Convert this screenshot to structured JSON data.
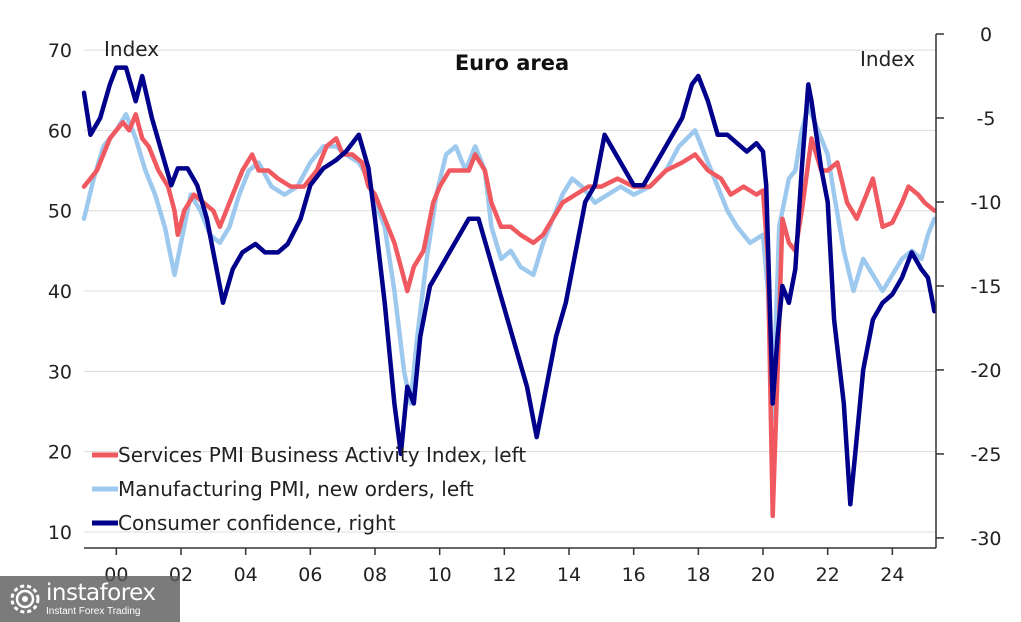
{
  "chart_data": {
    "type": "line",
    "title": "Euro area",
    "ylabel_left": "Index",
    "ylabel_right": "Index",
    "ylim_left": [
      8,
      72
    ],
    "ylim_right": [
      -30.6,
      0
    ],
    "xlim": [
      1999.0,
      2025.35
    ],
    "left_ticks": [
      10,
      20,
      30,
      40,
      50,
      60,
      70
    ],
    "right_ticks": [
      0,
      -5,
      -10,
      -15,
      -20,
      -25,
      -30
    ],
    "right_tick_labels": [
      "0",
      "-5",
      "-10",
      "-15",
      "-20",
      "-25",
      "-30"
    ],
    "x_ticks": [
      2000,
      2002,
      2004,
      2006,
      2008,
      2010,
      2012,
      2014,
      2016,
      2018,
      2020,
      2022,
      2024
    ],
    "x_tick_labels": [
      "00",
      "02",
      "04",
      "06",
      "08",
      "10",
      "12",
      "14",
      "16",
      "18",
      "20",
      "22",
      "24"
    ],
    "grid": true,
    "legend_position": "bottom-left",
    "series": [
      {
        "name": "Services PMI Business Activity Index, left",
        "axis": "left",
        "color": "#f0595f",
        "points": [
          [
            1999.0,
            53
          ],
          [
            1999.4,
            55
          ],
          [
            1999.8,
            59
          ],
          [
            2000.2,
            61
          ],
          [
            2000.4,
            60
          ],
          [
            2000.6,
            62
          ],
          [
            2000.8,
            59
          ],
          [
            2001.0,
            58
          ],
          [
            2001.3,
            55
          ],
          [
            2001.6,
            53
          ],
          [
            2001.8,
            50
          ],
          [
            2001.9,
            47
          ],
          [
            2002.1,
            50
          ],
          [
            2002.4,
            52
          ],
          [
            2002.7,
            51
          ],
          [
            2003.0,
            50
          ],
          [
            2003.2,
            48
          ],
          [
            2003.4,
            50
          ],
          [
            2003.6,
            52
          ],
          [
            2003.9,
            55
          ],
          [
            2004.2,
            57
          ],
          [
            2004.4,
            55
          ],
          [
            2004.7,
            55
          ],
          [
            2005.0,
            54
          ],
          [
            2005.4,
            53
          ],
          [
            2005.8,
            53
          ],
          [
            2006.2,
            55
          ],
          [
            2006.5,
            58
          ],
          [
            2006.8,
            59
          ],
          [
            2007.0,
            57
          ],
          [
            2007.3,
            57
          ],
          [
            2007.6,
            56
          ],
          [
            2007.8,
            53
          ],
          [
            2008.0,
            52
          ],
          [
            2008.3,
            49
          ],
          [
            2008.6,
            46
          ],
          [
            2008.8,
            43
          ],
          [
            2009.0,
            40
          ],
          [
            2009.2,
            43
          ],
          [
            2009.5,
            45
          ],
          [
            2009.8,
            51
          ],
          [
            2010.0,
            53
          ],
          [
            2010.3,
            55
          ],
          [
            2010.6,
            55
          ],
          [
            2010.9,
            55
          ],
          [
            2011.1,
            57
          ],
          [
            2011.4,
            55
          ],
          [
            2011.6,
            51
          ],
          [
            2011.9,
            48
          ],
          [
            2012.2,
            48
          ],
          [
            2012.5,
            47
          ],
          [
            2012.9,
            46
          ],
          [
            2013.2,
            47
          ],
          [
            2013.5,
            49
          ],
          [
            2013.8,
            51
          ],
          [
            2014.2,
            52
          ],
          [
            2014.6,
            53
          ],
          [
            2015.0,
            53
          ],
          [
            2015.5,
            54
          ],
          [
            2016.0,
            53
          ],
          [
            2016.5,
            53
          ],
          [
            2017.0,
            55
          ],
          [
            2017.5,
            56
          ],
          [
            2017.9,
            57
          ],
          [
            2018.3,
            55
          ],
          [
            2018.7,
            54
          ],
          [
            2019.0,
            52
          ],
          [
            2019.4,
            53
          ],
          [
            2019.8,
            52
          ],
          [
            2020.0,
            52.5
          ],
          [
            2020.15,
            44
          ],
          [
            2020.3,
            12
          ],
          [
            2020.45,
            30
          ],
          [
            2020.6,
            49
          ],
          [
            2020.8,
            46
          ],
          [
            2021.0,
            45
          ],
          [
            2021.2,
            50
          ],
          [
            2021.4,
            56
          ],
          [
            2021.5,
            59
          ],
          [
            2021.8,
            55
          ],
          [
            2022.0,
            55
          ],
          [
            2022.3,
            56
          ],
          [
            2022.6,
            51
          ],
          [
            2022.9,
            49
          ],
          [
            2023.1,
            51
          ],
          [
            2023.4,
            54
          ],
          [
            2023.7,
            48
          ],
          [
            2024.0,
            48.5
          ],
          [
            2024.3,
            51
          ],
          [
            2024.5,
            53
          ],
          [
            2024.8,
            52
          ],
          [
            2025.0,
            51
          ],
          [
            2025.3,
            50
          ]
        ]
      },
      {
        "name": "Manufacturing PMI, new orders, left",
        "axis": "left",
        "color": "#9ec9ef",
        "points": [
          [
            1999.0,
            49
          ],
          [
            1999.3,
            54
          ],
          [
            1999.6,
            58
          ],
          [
            2000.0,
            60
          ],
          [
            2000.3,
            62
          ],
          [
            2000.6,
            59
          ],
          [
            2000.9,
            55
          ],
          [
            2001.2,
            52
          ],
          [
            2001.5,
            48
          ],
          [
            2001.8,
            42
          ],
          [
            2002.0,
            46
          ],
          [
            2002.3,
            52
          ],
          [
            2002.6,
            50
          ],
          [
            2002.9,
            47
          ],
          [
            2003.2,
            46
          ],
          [
            2003.5,
            48
          ],
          [
            2003.8,
            52
          ],
          [
            2004.1,
            55
          ],
          [
            2004.4,
            56
          ],
          [
            2004.8,
            53
          ],
          [
            2005.2,
            52
          ],
          [
            2005.6,
            53
          ],
          [
            2006.0,
            56
          ],
          [
            2006.4,
            58
          ],
          [
            2006.8,
            58
          ],
          [
            2007.1,
            57
          ],
          [
            2007.5,
            56
          ],
          [
            2007.8,
            54
          ],
          [
            2008.0,
            51
          ],
          [
            2008.3,
            48
          ],
          [
            2008.6,
            40
          ],
          [
            2008.9,
            30
          ],
          [
            2009.1,
            26
          ],
          [
            2009.3,
            34
          ],
          [
            2009.6,
            44
          ],
          [
            2009.9,
            52
          ],
          [
            2010.2,
            57
          ],
          [
            2010.5,
            58
          ],
          [
            2010.8,
            55
          ],
          [
            2011.1,
            58
          ],
          [
            2011.4,
            55
          ],
          [
            2011.6,
            48
          ],
          [
            2011.9,
            44
          ],
          [
            2012.2,
            45
          ],
          [
            2012.5,
            43
          ],
          [
            2012.9,
            42
          ],
          [
            2013.2,
            46
          ],
          [
            2013.5,
            49
          ],
          [
            2013.8,
            52
          ],
          [
            2014.1,
            54
          ],
          [
            2014.4,
            53
          ],
          [
            2014.8,
            51
          ],
          [
            2015.2,
            52
          ],
          [
            2015.6,
            53
          ],
          [
            2016.0,
            52
          ],
          [
            2016.5,
            53
          ],
          [
            2017.0,
            55
          ],
          [
            2017.4,
            58
          ],
          [
            2017.9,
            60
          ],
          [
            2018.2,
            57
          ],
          [
            2018.6,
            53
          ],
          [
            2018.9,
            50
          ],
          [
            2019.2,
            48
          ],
          [
            2019.6,
            46
          ],
          [
            2020.0,
            47
          ],
          [
            2020.15,
            40
          ],
          [
            2020.3,
            24
          ],
          [
            2020.5,
            48
          ],
          [
            2020.8,
            54
          ],
          [
            2021.0,
            55
          ],
          [
            2021.2,
            60
          ],
          [
            2021.4,
            63
          ],
          [
            2021.7,
            60
          ],
          [
            2022.0,
            57
          ],
          [
            2022.2,
            52
          ],
          [
            2022.5,
            45
          ],
          [
            2022.8,
            40
          ],
          [
            2023.1,
            44
          ],
          [
            2023.4,
            42
          ],
          [
            2023.7,
            40
          ],
          [
            2024.0,
            42
          ],
          [
            2024.3,
            44
          ],
          [
            2024.6,
            45
          ],
          [
            2024.9,
            44
          ],
          [
            2025.1,
            47
          ],
          [
            2025.3,
            49
          ]
        ]
      },
      {
        "name": "Consumer confidence, right",
        "axis": "right",
        "color": "#00008b",
        "points": [
          [
            1999.0,
            -3.5
          ],
          [
            1999.2,
            -6
          ],
          [
            1999.5,
            -5
          ],
          [
            1999.8,
            -3
          ],
          [
            2000.0,
            -2
          ],
          [
            2000.3,
            -2
          ],
          [
            2000.6,
            -4
          ],
          [
            2000.8,
            -2.5
          ],
          [
            2001.1,
            -5
          ],
          [
            2001.4,
            -7
          ],
          [
            2001.7,
            -9
          ],
          [
            2001.9,
            -8
          ],
          [
            2002.2,
            -8
          ],
          [
            2002.5,
            -9
          ],
          [
            2002.8,
            -11
          ],
          [
            2003.1,
            -14
          ],
          [
            2003.3,
            -16
          ],
          [
            2003.6,
            -14
          ],
          [
            2003.9,
            -13
          ],
          [
            2004.3,
            -12.5
          ],
          [
            2004.6,
            -13
          ],
          [
            2005.0,
            -13
          ],
          [
            2005.3,
            -12.5
          ],
          [
            2005.7,
            -11
          ],
          [
            2006.0,
            -9
          ],
          [
            2006.4,
            -8
          ],
          [
            2006.8,
            -7.5
          ],
          [
            2007.1,
            -7
          ],
          [
            2007.5,
            -6
          ],
          [
            2007.8,
            -8
          ],
          [
            2008.0,
            -11
          ],
          [
            2008.3,
            -16
          ],
          [
            2008.6,
            -22
          ],
          [
            2008.8,
            -25
          ],
          [
            2009.0,
            -21
          ],
          [
            2009.2,
            -22
          ],
          [
            2009.4,
            -18
          ],
          [
            2009.7,
            -15
          ],
          [
            2010.0,
            -14
          ],
          [
            2010.3,
            -13
          ],
          [
            2010.6,
            -12
          ],
          [
            2010.9,
            -11
          ],
          [
            2011.2,
            -11
          ],
          [
            2011.5,
            -13
          ],
          [
            2011.8,
            -15
          ],
          [
            2012.1,
            -17
          ],
          [
            2012.4,
            -19
          ],
          [
            2012.7,
            -21
          ],
          [
            2013.0,
            -24
          ],
          [
            2013.3,
            -21
          ],
          [
            2013.6,
            -18
          ],
          [
            2013.9,
            -16
          ],
          [
            2014.2,
            -13
          ],
          [
            2014.5,
            -10
          ],
          [
            2014.8,
            -9
          ],
          [
            2015.1,
            -6
          ],
          [
            2015.4,
            -7
          ],
          [
            2015.7,
            -8
          ],
          [
            2016.0,
            -9
          ],
          [
            2016.3,
            -9
          ],
          [
            2016.6,
            -8
          ],
          [
            2016.9,
            -7
          ],
          [
            2017.2,
            -6
          ],
          [
            2017.5,
            -5
          ],
          [
            2017.8,
            -3
          ],
          [
            2018.0,
            -2.5
          ],
          [
            2018.3,
            -4
          ],
          [
            2018.6,
            -6
          ],
          [
            2018.9,
            -6
          ],
          [
            2019.2,
            -6.5
          ],
          [
            2019.5,
            -7
          ],
          [
            2019.8,
            -6.5
          ],
          [
            2020.0,
            -7
          ],
          [
            2020.1,
            -9
          ],
          [
            2020.3,
            -22
          ],
          [
            2020.45,
            -18
          ],
          [
            2020.6,
            -15
          ],
          [
            2020.8,
            -16
          ],
          [
            2021.0,
            -14
          ],
          [
            2021.2,
            -8
          ],
          [
            2021.4,
            -3
          ],
          [
            2021.5,
            -4
          ],
          [
            2021.8,
            -8
          ],
          [
            2022.0,
            -10
          ],
          [
            2022.2,
            -17
          ],
          [
            2022.5,
            -22
          ],
          [
            2022.7,
            -28
          ],
          [
            2022.85,
            -25
          ],
          [
            2023.1,
            -20
          ],
          [
            2023.4,
            -17
          ],
          [
            2023.7,
            -16
          ],
          [
            2024.0,
            -15.5
          ],
          [
            2024.3,
            -14.5
          ],
          [
            2024.6,
            -13
          ],
          [
            2024.9,
            -14
          ],
          [
            2025.1,
            -14.5
          ],
          [
            2025.3,
            -16.5
          ]
        ]
      }
    ]
  },
  "logo": {
    "name": "instaforex",
    "tagline": "Instant Forex Trading"
  }
}
